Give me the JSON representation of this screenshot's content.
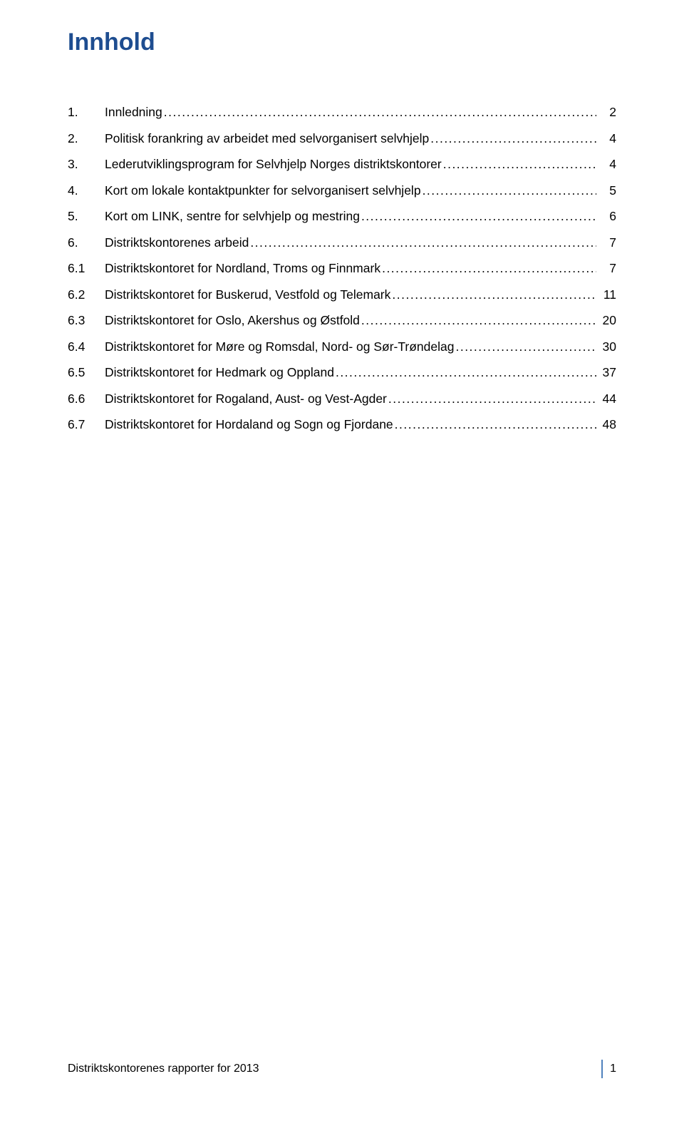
{
  "colors": {
    "title": "#1e4d90",
    "text": "#000000",
    "footer_rule": "#4f81bd",
    "background": "#ffffff"
  },
  "typography": {
    "title_fontsize": 34,
    "title_weight": 700,
    "body_fontsize": 17.5,
    "footer_fontsize": 16,
    "title_font": "Verdana",
    "body_font": "Verdana",
    "footer_font": "Arial"
  },
  "title": "Innhold",
  "toc": [
    {
      "num": "1.",
      "label": "Innledning",
      "page": "2"
    },
    {
      "num": "2.",
      "label": "Politisk forankring av arbeidet med selvorganisert selvhjelp",
      "page": "4"
    },
    {
      "num": "3.",
      "label": "Lederutviklingsprogram for Selvhjelp Norges distriktskontorer",
      "page": "4"
    },
    {
      "num": "4.",
      "label": "Kort om lokale kontaktpunkter for selvorganisert selvhjelp",
      "page": "5"
    },
    {
      "num": "5.",
      "label": "Kort om LINK, sentre for selvhjelp og mestring",
      "page": "6"
    },
    {
      "num": "6.",
      "label": "Distriktskontorenes arbeid",
      "page": "7"
    },
    {
      "num": "6.1",
      "label": "Distriktskontoret for Nordland, Troms og Finnmark",
      "page": "7"
    },
    {
      "num": "6.2",
      "label": "Distriktskontoret for Buskerud, Vestfold og Telemark",
      "page": "11"
    },
    {
      "num": "6.3",
      "label": "Distriktskontoret for Oslo, Akershus og Østfold",
      "page": "20"
    },
    {
      "num": "6.4",
      "label": "Distriktskontoret for Møre og Romsdal, Nord- og Sør-Trøndelag",
      "page": "30"
    },
    {
      "num": "6.5",
      "label": "Distriktskontoret for Hedmark og Oppland",
      "page": "37"
    },
    {
      "num": "6.6",
      "label": "Distriktskontoret for Rogaland, Aust- og Vest-Agder",
      "page": "44"
    },
    {
      "num": "6.7",
      "label": "Distriktskontoret for Hordaland og Sogn og Fjordane",
      "page": "48"
    }
  ],
  "footer": {
    "text": "Distriktskontorenes rapporter for 2013",
    "page": "1"
  }
}
